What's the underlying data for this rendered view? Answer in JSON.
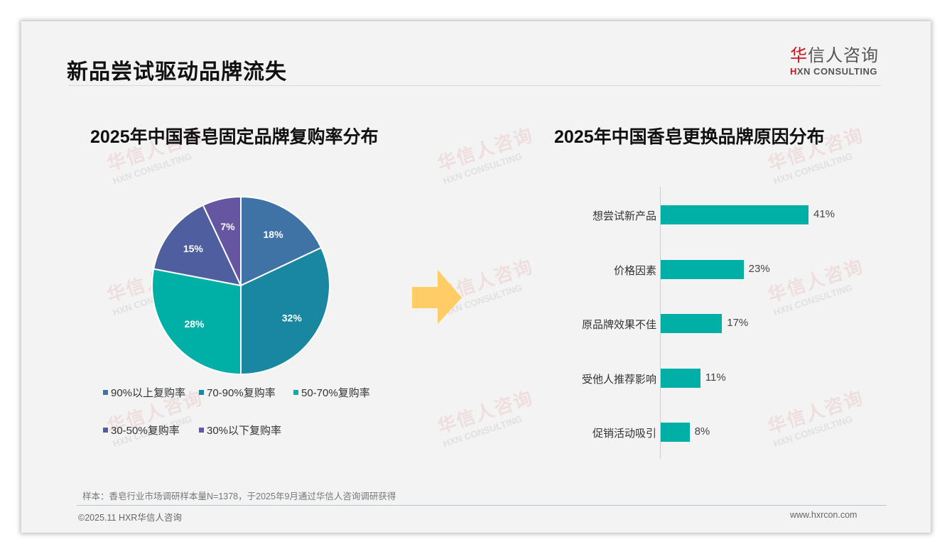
{
  "header": {
    "title": "新品尝试驱动品牌流失",
    "logo_cn_first": "华",
    "logo_cn_rest": "信人咨询",
    "logo_en_first": "H",
    "logo_en_rest": "XN CONSULTING"
  },
  "watermark": {
    "cn": "华信人咨询",
    "en": "HXN CONSULTING"
  },
  "colors": {
    "pie": [
      "#3f72a5",
      "#1a87a0",
      "#00b0a7",
      "#4f5e9e",
      "#6655a0"
    ],
    "bar": "#00b0a7",
    "arrow": "#ffcc66",
    "logo_red": "#d0121b"
  },
  "chart_data": [
    {
      "type": "pie",
      "title": "2025年中国香皂固定品牌复购率分布",
      "categories": [
        "90%以上复购率",
        "70-90%复购率",
        "50-70%复购率",
        "30-50%复购率",
        "30%以下复购率"
      ],
      "values": [
        18,
        32,
        28,
        15,
        7
      ],
      "labels": [
        "18%",
        "32%",
        "28%",
        "15%",
        "7%"
      ],
      "legend_position": "bottom"
    },
    {
      "type": "bar",
      "orientation": "horizontal",
      "title": "2025年中国香皂更换品牌原因分布",
      "categories": [
        "想尝试新产品",
        "价格因素",
        "原品牌效果不佳",
        "受他人推荐影响",
        "促销活动吸引"
      ],
      "values": [
        41,
        23,
        17,
        11,
        8
      ],
      "labels": [
        "41%",
        "23%",
        "17%",
        "11%",
        "8%"
      ],
      "grid": false
    }
  ],
  "footer": {
    "note": "样本：香皂行业市场调研样本量N=1378，于2025年9月通过华信人咨询调研获得",
    "copyright": "©2025.11 HXR华信人咨询",
    "url": "www.hxrcon.com"
  }
}
